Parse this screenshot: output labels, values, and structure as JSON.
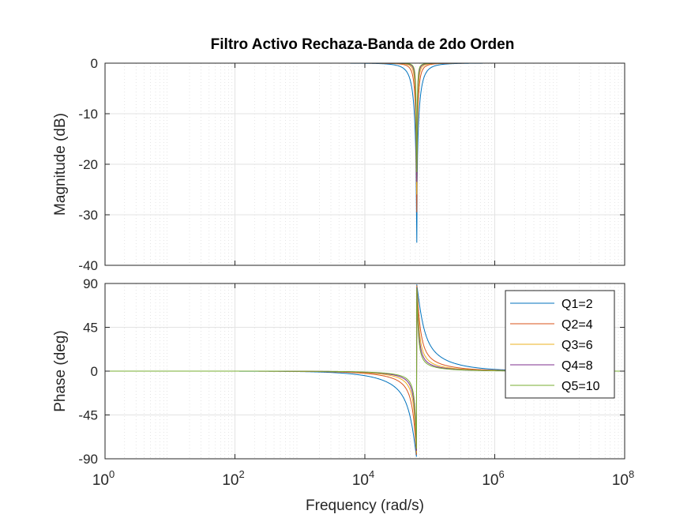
{
  "chart_data": {
    "type": "line",
    "title": "Filtro Activo Rechaza-Banda de 2do Orden",
    "xlabel": "Frequency  (rad/s)",
    "xscale": "log",
    "xlim": [
      1,
      100000000
    ],
    "x_ticks": [
      {
        "base": "10",
        "exp": "0",
        "value": 1
      },
      {
        "base": "10",
        "exp": "2",
        "value": 100
      },
      {
        "base": "10",
        "exp": "4",
        "value": 10000
      },
      {
        "base": "10",
        "exp": "6",
        "value": 1000000
      },
      {
        "base": "10",
        "exp": "8",
        "value": 100000000
      }
    ],
    "grid": true,
    "legend_position": "right",
    "center_frequency": 62832,
    "series": [
      {
        "name": "Q1=2",
        "q": 2,
        "color": "#0072BD"
      },
      {
        "name": "Q2=4",
        "q": 4,
        "color": "#D95319"
      },
      {
        "name": "Q3=6",
        "q": 6,
        "color": "#EDB120"
      },
      {
        "name": "Q4=8",
        "q": 8,
        "color": "#7E2F8E"
      },
      {
        "name": "Q5=10",
        "q": 10,
        "color": "#77AC30"
      }
    ],
    "magnitude": {
      "ylabel": "Magnitude (dB)",
      "ylim": [
        -40,
        0
      ],
      "yticks": [
        "0",
        "-10",
        "-20",
        "-30",
        "-40"
      ],
      "ytick_values": [
        0,
        -10,
        -20,
        -30,
        -40
      ]
    },
    "phase": {
      "ylabel": "Phase (deg)",
      "ylim": [
        -90,
        90
      ],
      "yticks": [
        "90",
        "45",
        "0",
        "-45",
        "-90"
      ],
      "ytick_values": [
        90,
        45,
        0,
        -45,
        -90
      ]
    }
  }
}
